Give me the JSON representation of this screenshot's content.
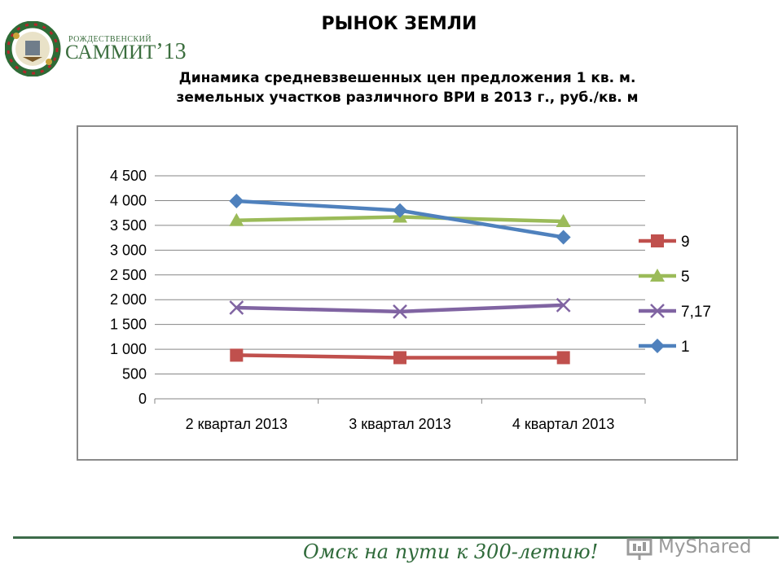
{
  "header": {
    "title": "РЫНОК ЗЕМЛИ",
    "subtitle_line1": "Динамика средневзвешенных цен предложения 1 кв. м.",
    "subtitle_line2": "земельных участков различного ВРИ в 2013 г., руб./кв. м"
  },
  "logo": {
    "small_text": "РОЖДЕСТВЕНСКИЙ",
    "big_text": "САММИТ",
    "number": "’13"
  },
  "footer": {
    "slogan": "Омск на пути к 300-летию!",
    "watermark": "MyShared"
  },
  "colors": {
    "series_9": "#c0504d",
    "series_5": "#9bbb59",
    "series_7_17": "#8064a2",
    "series_1": "#4f81bd",
    "grid": "#868686",
    "footer_green": "#3d6b4a"
  },
  "chart_data": {
    "type": "line",
    "title": "",
    "xlabel": "",
    "ylabel": "",
    "categories": [
      "2 квартал 2013",
      "3 квартал 2013",
      "4 квартал 2013"
    ],
    "ylim": [
      0,
      4500
    ],
    "yticks": [
      0,
      500,
      1000,
      1500,
      2000,
      2500,
      3000,
      3500,
      4000,
      4500
    ],
    "ytick_labels": [
      "0",
      "500",
      "1 000",
      "1 500",
      "2 000",
      "2 500",
      "3 000",
      "3 500",
      "4 000",
      "4 500"
    ],
    "grid": true,
    "legend_position": "right",
    "series": [
      {
        "name": "9",
        "values": [
          880,
          830,
          830
        ],
        "color": "#c0504d",
        "marker": "square"
      },
      {
        "name": "5",
        "values": [
          3600,
          3670,
          3580
        ],
        "color": "#9bbb59",
        "marker": "triangle"
      },
      {
        "name": "7,17",
        "values": [
          1840,
          1760,
          1890
        ],
        "color": "#8064a2",
        "marker": "x"
      },
      {
        "name": "1",
        "values": [
          3990,
          3800,
          3260
        ],
        "color": "#4f81bd",
        "marker": "diamond"
      }
    ]
  }
}
